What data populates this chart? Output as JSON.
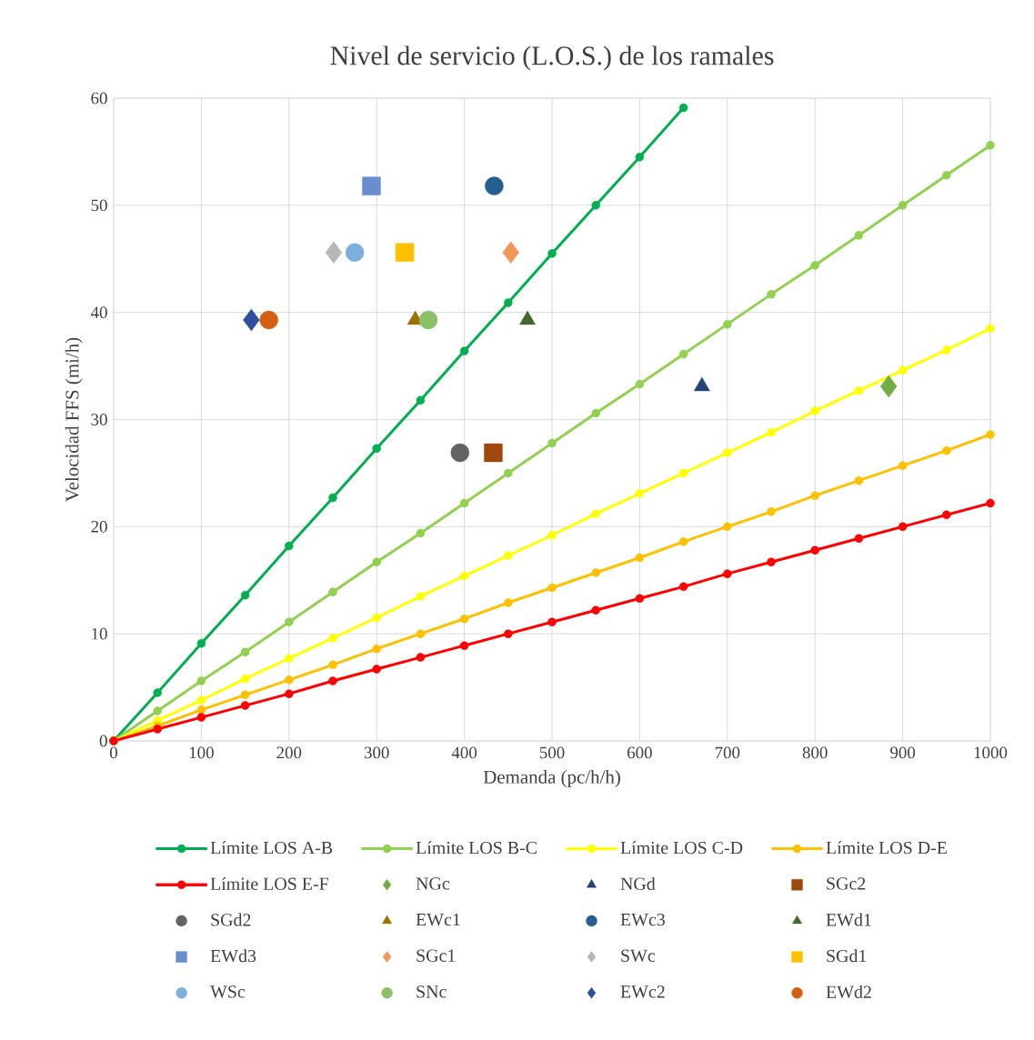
{
  "chart_data": {
    "type": "line",
    "title": "Nivel de servicio (L.O.S.) de los ramales",
    "xlabel": "Demanda (pc/h/h)",
    "ylabel": "Velocidad FFS (mi/h)",
    "xlim": [
      0,
      1000
    ],
    "ylim": [
      0,
      60
    ],
    "xticks": [
      0,
      100,
      200,
      300,
      400,
      500,
      600,
      700,
      800,
      900,
      1000
    ],
    "yticks": [
      0,
      10,
      20,
      30,
      40,
      50,
      60
    ],
    "grid": true,
    "legend": "bottom",
    "series": [
      {
        "name": "Límite LOS A-B",
        "marker": "circle",
        "color": "#00b050",
        "x": [
          0,
          50,
          100,
          150,
          200,
          250,
          300,
          350,
          400,
          450,
          500,
          550,
          600,
          650
        ],
        "values": [
          0,
          4.5,
          9.1,
          13.6,
          18.2,
          22.7,
          27.3,
          31.8,
          36.4,
          40.9,
          45.5,
          50,
          54.5,
          59.1
        ]
      },
      {
        "name": "Límite LOS B-C",
        "marker": "circle",
        "color": "#92d050",
        "x": [
          0,
          50,
          100,
          150,
          200,
          250,
          300,
          350,
          400,
          450,
          500,
          550,
          600,
          650,
          700,
          750,
          800,
          850,
          900,
          950,
          1000
        ],
        "values": [
          0,
          2.8,
          5.6,
          8.3,
          11.1,
          13.9,
          16.7,
          19.4,
          22.2,
          25,
          27.8,
          30.6,
          33.3,
          36.1,
          38.9,
          41.7,
          44.4,
          47.2,
          50,
          52.8,
          55.6
        ]
      },
      {
        "name": "Límite LOS C-D",
        "marker": "circle",
        "color": "#ffff00",
        "x": [
          0,
          50,
          100,
          150,
          200,
          250,
          300,
          350,
          400,
          450,
          500,
          550,
          600,
          650,
          700,
          750,
          800,
          850,
          900,
          950,
          1000
        ],
        "values": [
          0,
          1.9,
          3.8,
          5.8,
          7.7,
          9.6,
          11.5,
          13.5,
          15.4,
          17.3,
          19.2,
          21.2,
          23.1,
          25,
          26.9,
          28.8,
          30.8,
          32.7,
          34.6,
          36.5,
          38.5
        ]
      },
      {
        "name": "Límite LOS D-E",
        "marker": "circle",
        "color": "#ffc000",
        "x": [
          0,
          50,
          100,
          150,
          200,
          250,
          300,
          350,
          400,
          450,
          500,
          550,
          600,
          650,
          700,
          750,
          800,
          850,
          900,
          950,
          1000
        ],
        "values": [
          0,
          1.4,
          2.9,
          4.3,
          5.7,
          7.1,
          8.6,
          10,
          11.4,
          12.9,
          14.3,
          15.7,
          17.1,
          18.6,
          20,
          21.4,
          22.9,
          24.3,
          25.7,
          27.1,
          28.6
        ]
      },
      {
        "name": "Límite LOS E-F",
        "marker": "circle",
        "color": "#ff0000",
        "x": [
          0,
          50,
          100,
          150,
          200,
          250,
          300,
          350,
          400,
          450,
          500,
          550,
          600,
          650,
          700,
          750,
          800,
          850,
          900,
          950,
          1000
        ],
        "values": [
          0,
          1.1,
          2.2,
          3.3,
          4.4,
          5.6,
          6.7,
          7.8,
          8.9,
          10,
          11.1,
          12.2,
          13.3,
          14.4,
          15.6,
          16.7,
          17.8,
          18.9,
          20,
          21.1,
          22.2
        ]
      },
      {
        "name": "NGc",
        "type": "scatter",
        "marker": "diamond",
        "color": "#70ad47",
        "x": [
          884
        ],
        "values": [
          33.1
        ]
      },
      {
        "name": "NGd",
        "type": "scatter",
        "marker": "triangle",
        "color": "#264478",
        "x": [
          671
        ],
        "values": [
          33.1
        ]
      },
      {
        "name": "SGc2",
        "type": "scatter",
        "marker": "square",
        "color": "#9e480e",
        "x": [
          433
        ],
        "values": [
          26.9
        ]
      },
      {
        "name": "SGd2",
        "type": "scatter",
        "marker": "circle",
        "color": "#636363",
        "x": [
          395
        ],
        "values": [
          26.9
        ]
      },
      {
        "name": "EWc1",
        "type": "scatter",
        "marker": "triangle",
        "color": "#997300",
        "x": [
          344
        ],
        "values": [
          39.3
        ]
      },
      {
        "name": "EWc3",
        "type": "scatter",
        "marker": "circle",
        "color": "#255e91",
        "x": [
          434
        ],
        "values": [
          51.8
        ]
      },
      {
        "name": "EWd1",
        "type": "scatter",
        "marker": "triangle",
        "color": "#43682b",
        "x": [
          472
        ],
        "values": [
          39.3
        ]
      },
      {
        "name": "EWd3",
        "type": "scatter",
        "marker": "square",
        "color": "#698ed0",
        "x": [
          294
        ],
        "values": [
          51.8
        ]
      },
      {
        "name": "SGc1",
        "type": "scatter",
        "marker": "diamond",
        "color": "#f1975a",
        "x": [
          453
        ],
        "values": [
          45.6
        ]
      },
      {
        "name": "SWc",
        "type": "scatter",
        "marker": "diamond",
        "color": "#b7b7b7",
        "x": [
          251
        ],
        "values": [
          45.6
        ]
      },
      {
        "name": "SGd1",
        "type": "scatter",
        "marker": "square",
        "color": "#ffc000",
        "x": [
          332
        ],
        "values": [
          45.6
        ]
      },
      {
        "name": "WSc",
        "type": "scatter",
        "marker": "circle",
        "color": "#7cafdd",
        "x": [
          275
        ],
        "values": [
          45.6
        ]
      },
      {
        "name": "SNc",
        "type": "scatter",
        "marker": "circle",
        "color": "#8cc168",
        "x": [
          359
        ],
        "values": [
          39.3
        ]
      },
      {
        "name": "EWc2",
        "type": "scatter",
        "marker": "diamond",
        "color": "#2e4fa0",
        "x": [
          157
        ],
        "values": [
          39.3
        ]
      },
      {
        "name": "EWd2",
        "type": "scatter",
        "marker": "circle",
        "color": "#d26012",
        "x": [
          177
        ],
        "values": [
          39.3
        ]
      }
    ]
  }
}
